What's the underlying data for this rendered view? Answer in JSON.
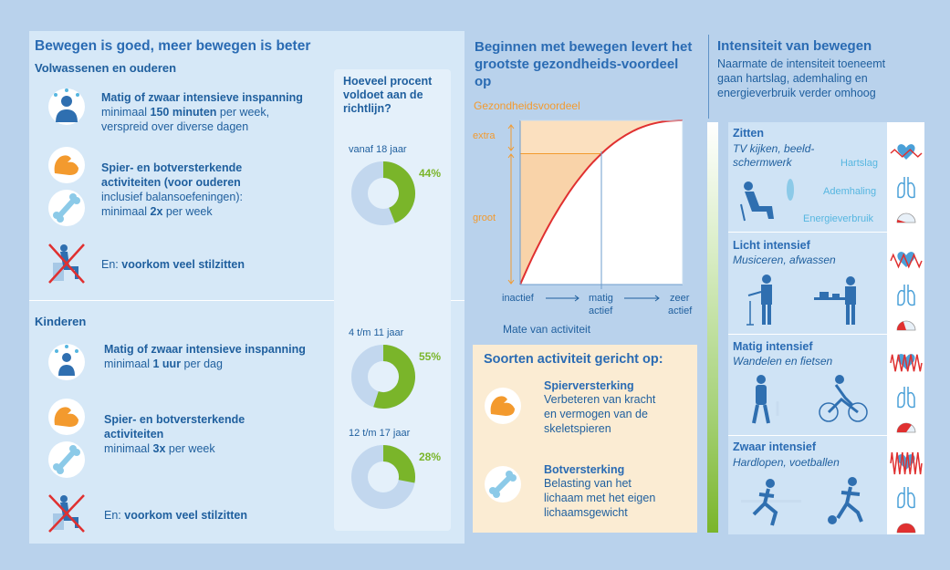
{
  "left": {
    "title": "Bewegen is goed, meer bewegen is beter",
    "adults": {
      "heading": "Volwassenen en ouderen",
      "items": [
        {
          "icon": "person-sweat-icon",
          "lines": [
            "Matig of zwaar intensieve inspanning",
            "minimaal 150 minuten per week,",
            "verspreid over diverse dagen"
          ]
        },
        {
          "icon": "muscle-bone-icon",
          "lines": [
            "Spier- en botversterkende",
            "activiteiten (voor ouderen",
            "inclusief balansoefeningen):",
            "minimaal 2x per week"
          ]
        },
        {
          "icon": "no-sitting-icon",
          "lines": [
            "En: voorkom veel stilzitten"
          ]
        }
      ]
    },
    "kids": {
      "heading": "Kinderen",
      "items": [
        {
          "icon": "person-sweat-icon",
          "lines": [
            "Matig of zwaar intensieve inspanning",
            "minimaal 1 uur per dag"
          ]
        },
        {
          "icon": "muscle-bone-icon",
          "lines": [
            "Spier- en botversterkende",
            "activiteiten",
            "minimaal 3x per week"
          ]
        },
        {
          "icon": "no-sitting-icon",
          "lines": [
            "En: voorkom veel stilzitten"
          ]
        }
      ]
    },
    "percent": {
      "title": "Hoeveel procent voldoet aan de richtlijn?",
      "groups": [
        {
          "label": "vanaf 18 jaar",
          "value": 44,
          "display": "44%"
        },
        {
          "label": "4 t/m 11 jaar",
          "value": 55,
          "display": "55%"
        },
        {
          "label": "12 t/m 17 jaar",
          "value": 28,
          "display": "28%"
        }
      ]
    }
  },
  "middle": {
    "title": "Beginnen met bewegen levert het grootste gezondheids-voordeel op",
    "chart_data": {
      "type": "line",
      "title": "Gezondheidsvoordeel",
      "ylabel": "Gezondheidsvoordeel",
      "xlabel": "Mate van activiteit",
      "x_ticks": [
        "inactief",
        "matig actief",
        "zeer actief"
      ],
      "y_regions": [
        "groot",
        "extra"
      ],
      "series": [
        {
          "name": "gezondheidsvoordeel",
          "x": [
            0,
            0.25,
            0.5,
            0.75,
            1.0
          ],
          "y": [
            0,
            0.56,
            0.81,
            0.93,
            1.0
          ]
        }
      ]
    },
    "soorten": {
      "title": "Soorten activiteit gericht op:",
      "items": [
        {
          "heading": "Spierversterking",
          "lines": [
            "Verbeteren van kracht",
            "en vermogen van de",
            "skeletspieren"
          ]
        },
        {
          "heading": "Botversterking",
          "lines": [
            "Belasting van het",
            "lichaam met het eigen",
            "lichaamsgewicht"
          ]
        }
      ]
    }
  },
  "right": {
    "title": "Intensiteit van bewegen",
    "desc": [
      "Naarmate de intensiteit toeneemt",
      "gaan hartslag, ademhaling en",
      "energieverbruik verder omhoog"
    ],
    "physio_labels": [
      "Hartslag",
      "Ademhaling",
      "Energieverbruik"
    ],
    "levels": [
      {
        "heading": "Zitten",
        "sub": [
          "TV kijken, beeld-",
          "schermwerk"
        ],
        "intensity": 0.1
      },
      {
        "heading": "Licht intensief",
        "sub": [
          "Musiceren, afwassen"
        ],
        "intensity": 0.4
      },
      {
        "heading": "Matig intensief",
        "sub": [
          "Wandelen en fietsen"
        ],
        "intensity": 0.7
      },
      {
        "heading": "Zwaar intensief",
        "sub": [
          "Hardlopen, voetballen"
        ],
        "intensity": 1.0
      }
    ],
    "colors": {
      "accent": "#2a6bb3",
      "green": "#7ab52a",
      "orange": "#f39a2e",
      "red": "#e03030"
    }
  }
}
